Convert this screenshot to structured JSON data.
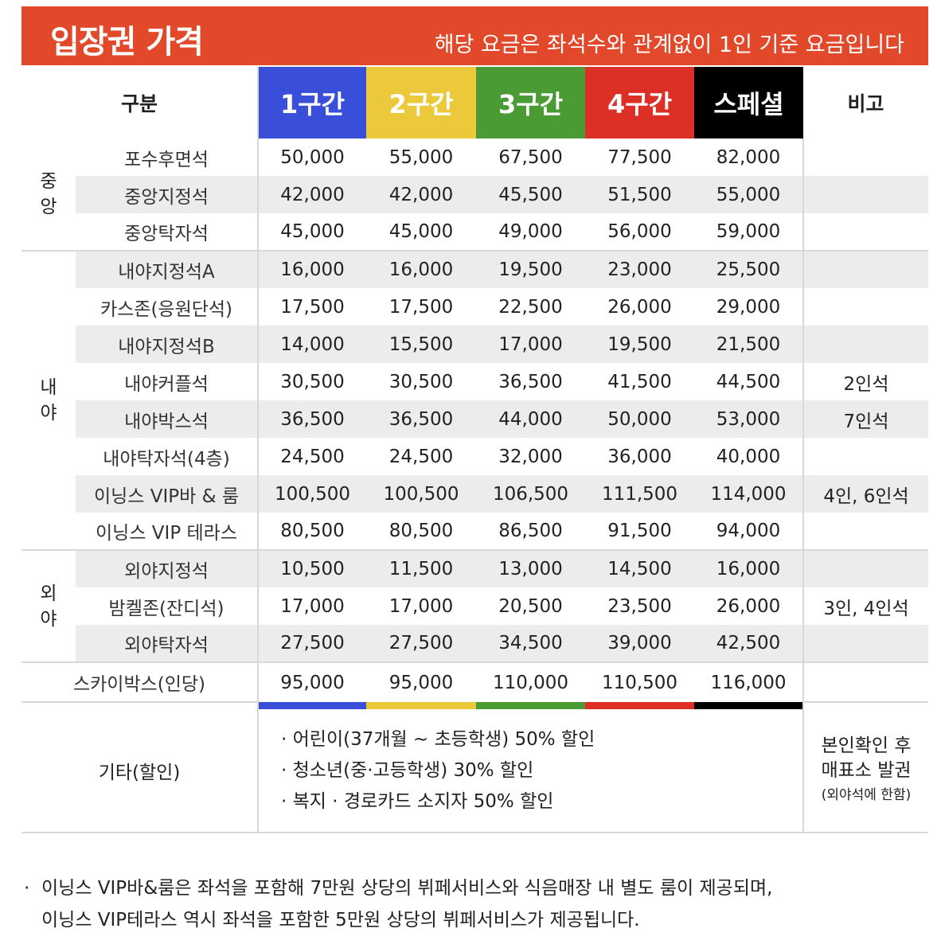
{
  "banner": {
    "title": "입장권 가격",
    "note": "해당 요금은 좌석수와 관계없이 1인 기준 요금입니다",
    "color": "#e2492a"
  },
  "header": {
    "category": "구분",
    "zones": [
      {
        "label": "1구간",
        "color": "#3a4fd9"
      },
      {
        "label": "2구간",
        "color": "#ecc93a"
      },
      {
        "label": "3구간",
        "color": "#4b9b34"
      },
      {
        "label": "4구간",
        "color": "#dc2f26"
      },
      {
        "label": "스페셜",
        "color": "#000000"
      }
    ],
    "remark": "비고"
  },
  "groups": [
    {
      "label_lines": [
        "중",
        "앙"
      ],
      "rows": [
        {
          "seat": "포수후면석",
          "prices": [
            "50,000",
            "55,000",
            "67,500",
            "77,500",
            "82,000"
          ],
          "remark": ""
        },
        {
          "seat": "중앙지정석",
          "prices": [
            "42,000",
            "42,000",
            "45,500",
            "51,500",
            "55,000"
          ],
          "remark": ""
        },
        {
          "seat": "중앙탁자석",
          "prices": [
            "45,000",
            "45,000",
            "49,000",
            "56,000",
            "59,000"
          ],
          "remark": ""
        }
      ]
    },
    {
      "label_lines": [
        "내",
        "야"
      ],
      "rows": [
        {
          "seat": "내야지정석A",
          "prices": [
            "16,000",
            "16,000",
            "19,500",
            "23,000",
            "25,500"
          ],
          "remark": ""
        },
        {
          "seat": "카스존(응원단석)",
          "prices": [
            "17,500",
            "17,500",
            "22,500",
            "26,000",
            "29,000"
          ],
          "remark": ""
        },
        {
          "seat": "내야지정석B",
          "prices": [
            "14,000",
            "15,500",
            "17,000",
            "19,500",
            "21,500"
          ],
          "remark": ""
        },
        {
          "seat": "내야커플석",
          "prices": [
            "30,500",
            "30,500",
            "36,500",
            "41,500",
            "44,500"
          ],
          "remark": "2인석"
        },
        {
          "seat": "내야박스석",
          "prices": [
            "36,500",
            "36,500",
            "44,000",
            "50,000",
            "53,000"
          ],
          "remark": "7인석"
        },
        {
          "seat": "내야탁자석(4층)",
          "prices": [
            "24,500",
            "24,500",
            "32,000",
            "36,000",
            "40,000"
          ],
          "remark": ""
        },
        {
          "seat": "이닝스 VIP바 & 룸",
          "prices": [
            "100,500",
            "100,500",
            "106,500",
            "111,500",
            "114,000"
          ],
          "remark": "4인, 6인석"
        },
        {
          "seat": "이닝스 VIP 테라스",
          "prices": [
            "80,500",
            "80,500",
            "86,500",
            "91,500",
            "94,000"
          ],
          "remark": ""
        }
      ]
    },
    {
      "label_lines": [
        "외",
        "야"
      ],
      "rows": [
        {
          "seat": "외야지정석",
          "prices": [
            "10,500",
            "11,500",
            "13,000",
            "14,500",
            "16,000"
          ],
          "remark": ""
        },
        {
          "seat": "밤켈존(잔디석)",
          "prices": [
            "17,000",
            "17,000",
            "20,500",
            "23,500",
            "26,000"
          ],
          "remark": "3인, 4인석"
        },
        {
          "seat": "외야탁자석",
          "prices": [
            "27,500",
            "27,500",
            "34,500",
            "39,000",
            "42,500"
          ],
          "remark": ""
        }
      ]
    }
  ],
  "skybox": {
    "seat": "스카이박스(인당)",
    "prices": [
      "95,000",
      "95,000",
      "110,000",
      "110,500",
      "116,000"
    ],
    "remark": ""
  },
  "misc": {
    "label": "기타(할인)",
    "items": [
      "· 어린이(37개월 ~ 초등학생) 50% 할인",
      "· 청소년(중·고등학생) 30% 할인",
      "· 복지 · 경로카드 소지자 50% 할인"
    ],
    "note_lines": [
      "본인확인 후",
      "매표소 발권"
    ],
    "note_small": "(외야석에 한함)"
  },
  "footer": {
    "bullet": "·",
    "lines": [
      "이닝스 VIP바&룸은 좌석을 포함해 7만원 상당의 뷔페서비스와 식음매장 내 별도 룸이 제공되며,",
      "이닝스 VIP테라스 역시 좌석을 포함한 5만원 상당의 뷔페서비스가 제공됩니다."
    ]
  }
}
